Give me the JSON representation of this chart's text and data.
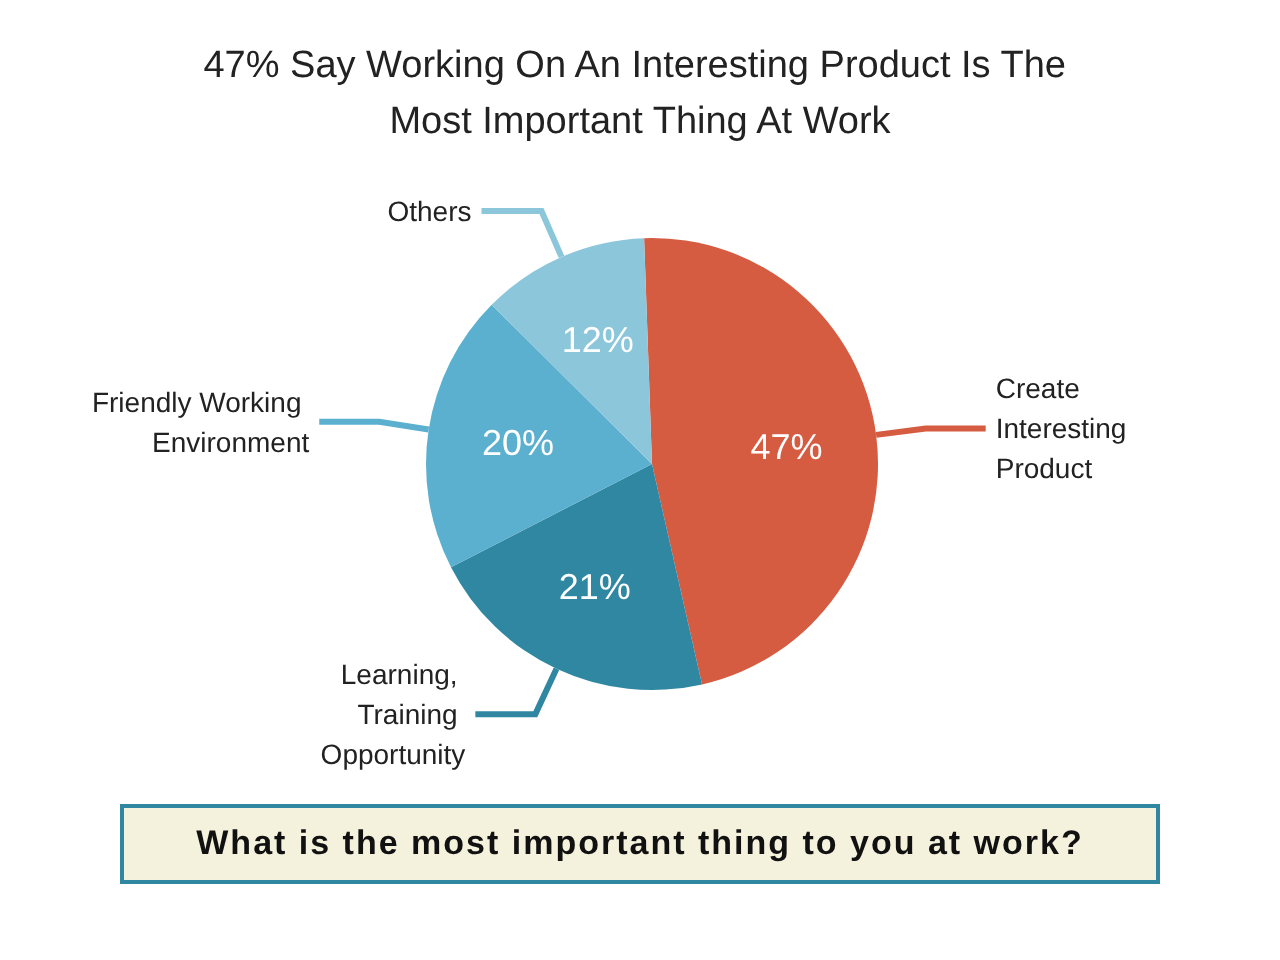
{
  "chart_data": {
    "type": "pie",
    "title": "47% Say Working On An Interesting Product Is The Most Important Thing At Work",
    "categories": [
      "Create Interesting Product",
      "Learning, Training Opportunity",
      "Friendly Working Environment",
      "Others"
    ],
    "values": [
      47,
      21,
      20,
      12
    ],
    "colors": [
      "#d55b41",
      "#2f87a2",
      "#5bb0cf",
      "#8bc6da"
    ],
    "value_labels": [
      "47%",
      "21%",
      "20%",
      "12%"
    ],
    "legend": false,
    "annotations": [
      "What is the most important thing to you at work?"
    ]
  }
}
